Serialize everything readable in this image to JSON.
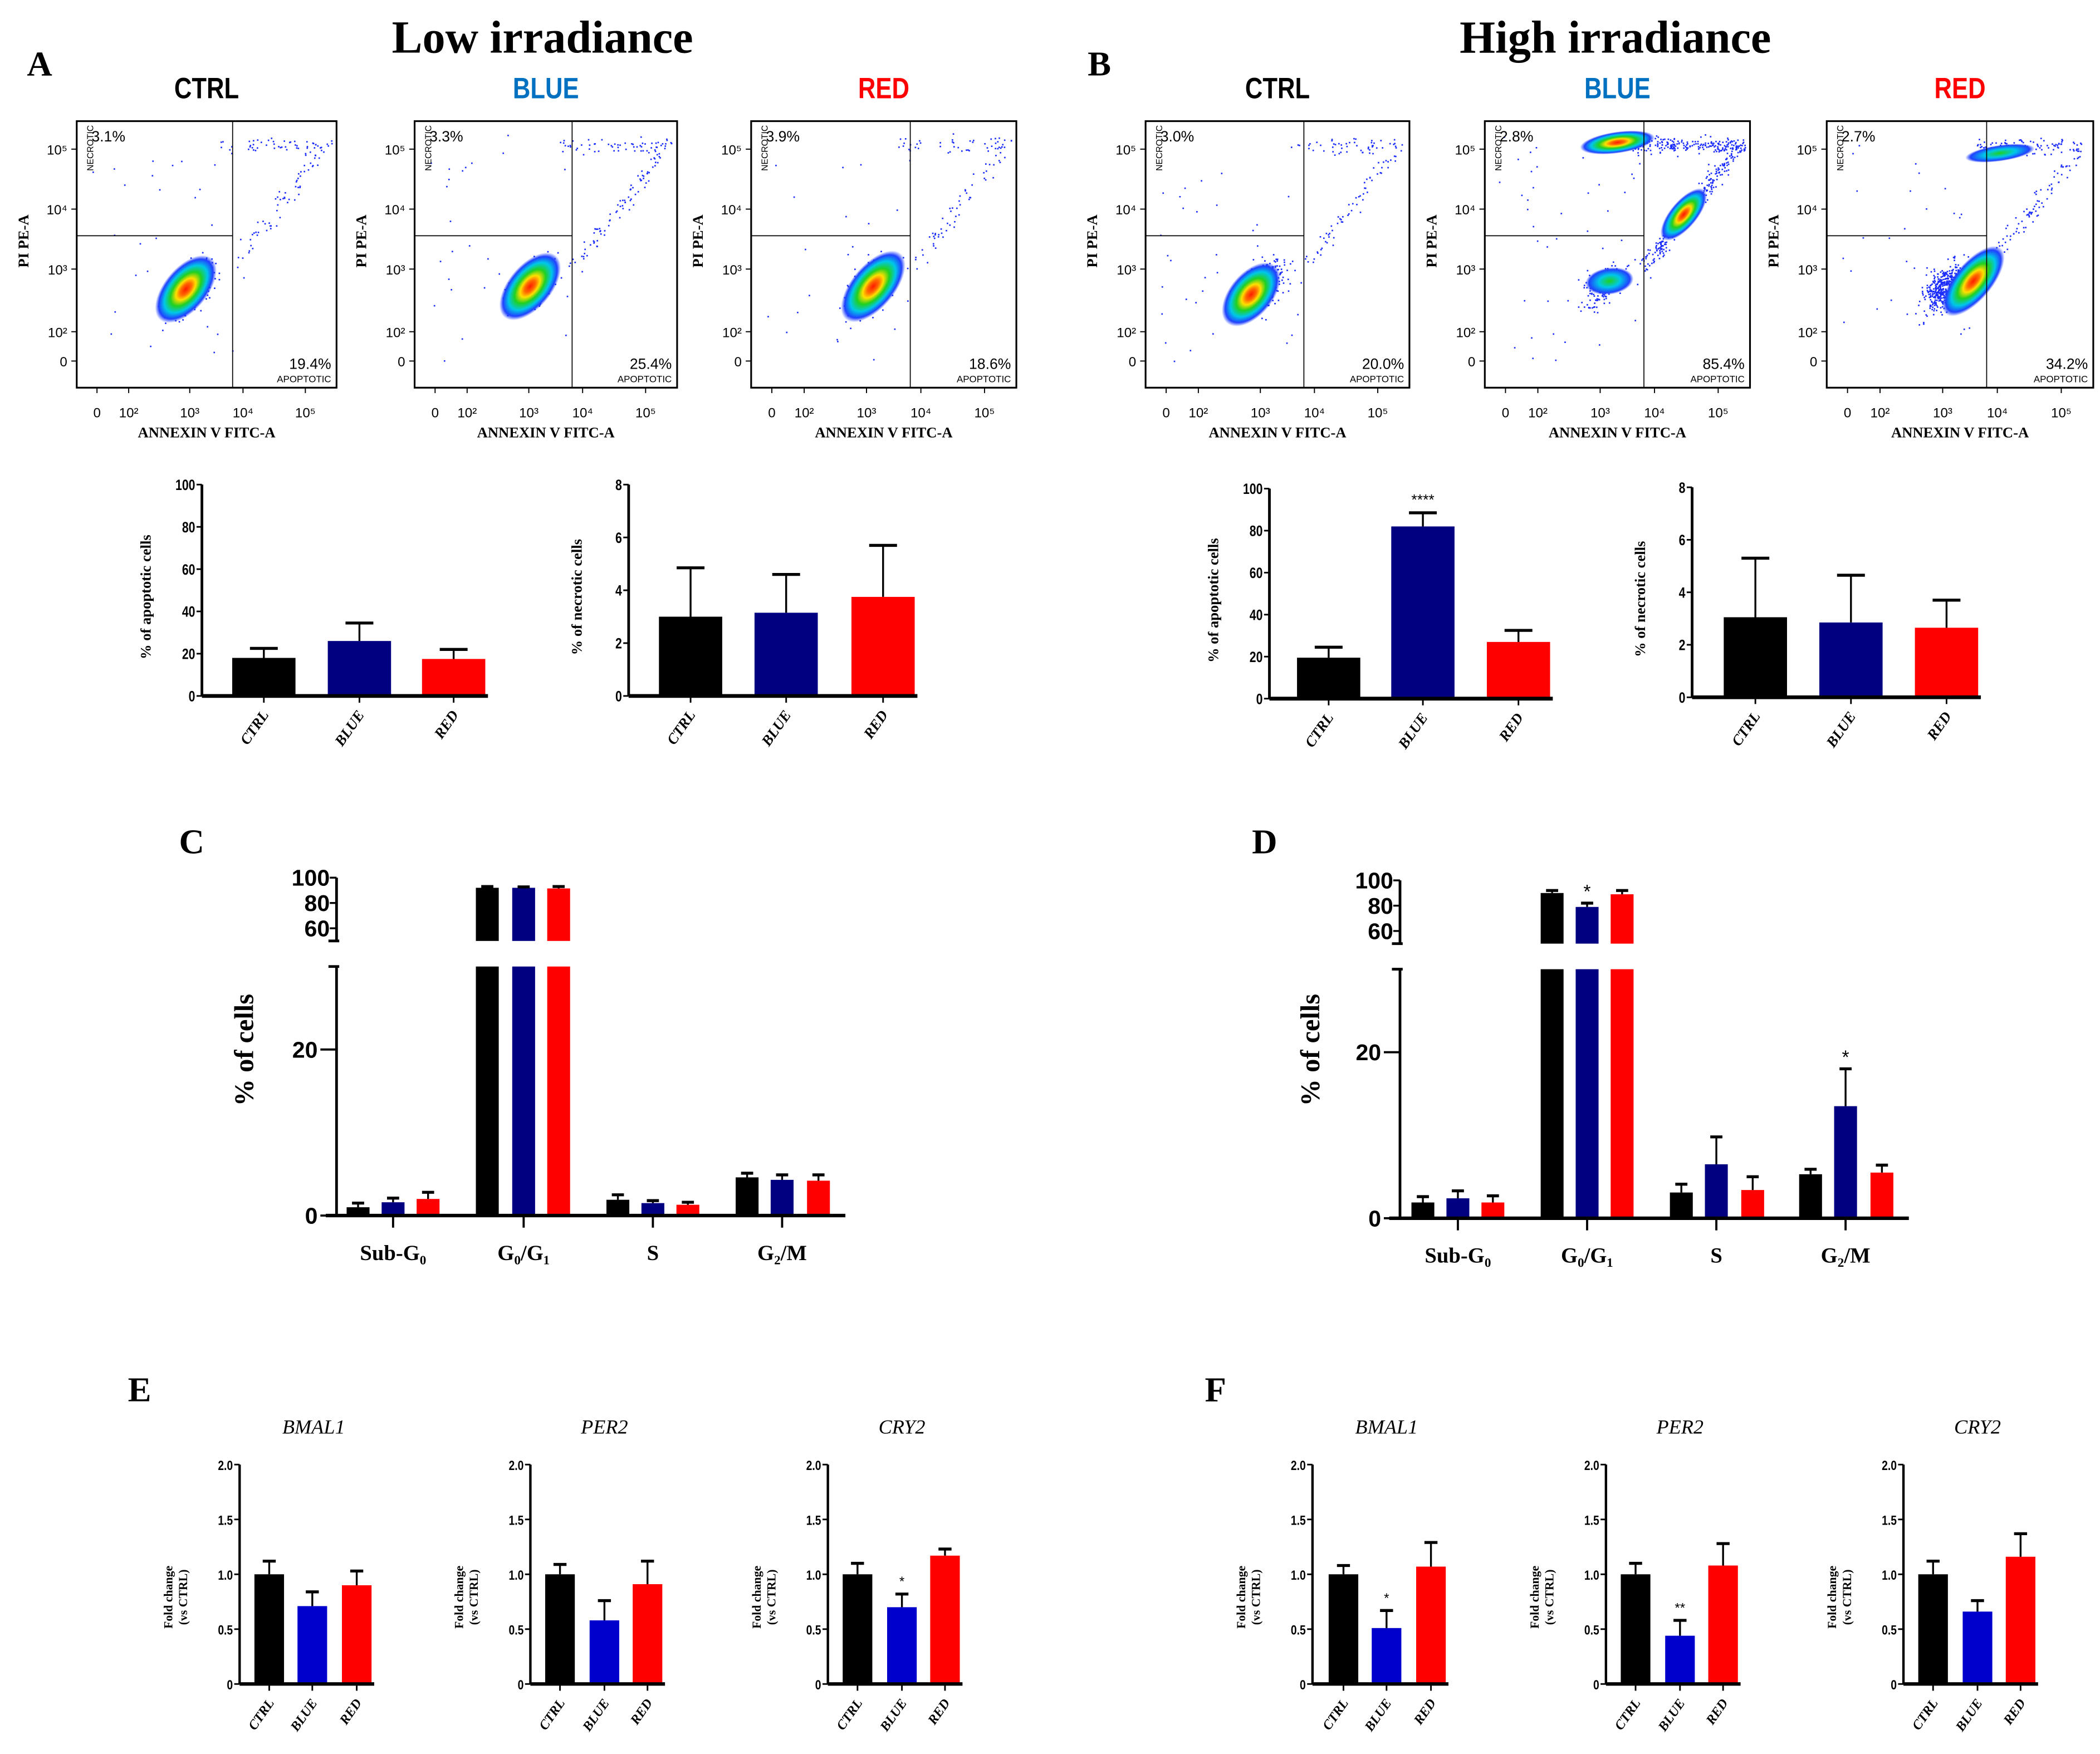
{
  "titles": {
    "low": "Low irradiance",
    "high": "High irradiance"
  },
  "panel_letters": [
    "A",
    "B",
    "C",
    "D",
    "E",
    "F"
  ],
  "colors": {
    "ctrl": "#000000",
    "blue_dark": "#000080",
    "red": "#ff0000",
    "blue_bright": "#0000cc",
    "title_blue": "#0070c0",
    "dots": "#1a2cff"
  },
  "flow": {
    "x_label": "ANNEXIN V FITC-A",
    "y_label": "PI PE-A",
    "x_ticks": [
      "0",
      "10²",
      "10³",
      "10⁴",
      "10⁵"
    ],
    "y_ticks": [
      "10⁵",
      "10⁴",
      "10³",
      "10²",
      "0"
    ],
    "necrotic_label": "NECROTIC",
    "apoptotic_label": "APOPTOTIC",
    "plots": [
      {
        "condition": "CTRL",
        "irradiance": "low",
        "necrotic": "3.1%",
        "apoptotic": "19.4%"
      },
      {
        "condition": "BLUE",
        "irradiance": "low",
        "necrotic": "3.3%",
        "apoptotic": "25.4%"
      },
      {
        "condition": "RED",
        "irradiance": "low",
        "necrotic": "3.9%",
        "apoptotic": "18.6%"
      },
      {
        "condition": "CTRL",
        "irradiance": "high",
        "necrotic": "3.0%",
        "apoptotic": "20.0%"
      },
      {
        "condition": "BLUE",
        "irradiance": "high",
        "necrotic": "2.8%",
        "apoptotic": "85.4%"
      },
      {
        "condition": "RED",
        "irradiance": "high",
        "necrotic": "2.7%",
        "apoptotic": "34.2%"
      }
    ]
  },
  "chart_data": [
    {
      "id": "A-apoptotic",
      "type": "bar",
      "categories": [
        "CTRL",
        "BLUE",
        "RED"
      ],
      "values": [
        18,
        26,
        17.5
      ],
      "errors": [
        4.5,
        8.5,
        4.5
      ],
      "significance": [
        "",
        "",
        ""
      ],
      "ylabel": "% of apoptotic cells",
      "ylim": [
        0,
        100
      ],
      "yticks": [
        "0",
        "20",
        "40",
        "60",
        "80",
        "100"
      ],
      "bar_colors": [
        "#000000",
        "#000080",
        "#ff0000"
      ]
    },
    {
      "id": "A-necrotic",
      "type": "bar",
      "categories": [
        "CTRL",
        "BLUE",
        "RED"
      ],
      "values": [
        3.0,
        3.15,
        3.75
      ],
      "errors": [
        1.85,
        1.45,
        1.95
      ],
      "significance": [
        "",
        "",
        ""
      ],
      "ylabel": "% of necrotic cells",
      "ylim": [
        0,
        8
      ],
      "yticks": [
        "0",
        "2",
        "4",
        "6",
        "8"
      ],
      "bar_colors": [
        "#000000",
        "#000080",
        "#ff0000"
      ]
    },
    {
      "id": "B-apoptotic",
      "type": "bar",
      "categories": [
        "CTRL",
        "BLUE",
        "RED"
      ],
      "values": [
        19.5,
        82,
        27
      ],
      "errors": [
        5,
        6.5,
        5.5
      ],
      "significance": [
        "",
        "****",
        ""
      ],
      "ylabel": "% of apoptotic cells",
      "ylim": [
        0,
        100
      ],
      "yticks": [
        "0",
        "20",
        "40",
        "60",
        "80",
        "100"
      ],
      "bar_colors": [
        "#000000",
        "#000080",
        "#ff0000"
      ]
    },
    {
      "id": "B-necrotic",
      "type": "bar",
      "categories": [
        "CTRL",
        "BLUE",
        "RED"
      ],
      "values": [
        3.05,
        2.85,
        2.65
      ],
      "errors": [
        2.25,
        1.8,
        1.05
      ],
      "significance": [
        "",
        "",
        ""
      ],
      "ylabel": "% of necrotic cells",
      "ylim": [
        0,
        8
      ],
      "yticks": [
        "0",
        "2",
        "4",
        "6",
        "8"
      ],
      "bar_colors": [
        "#000000",
        "#000080",
        "#ff0000"
      ]
    },
    {
      "id": "C-cell-cycle",
      "type": "bar",
      "categories": [
        "Sub-G₀",
        "G₀/G₁",
        "S",
        "G₂/M"
      ],
      "ylabel": "% of cells",
      "ylim": [
        0,
        100
      ],
      "axis_break": [
        30,
        50
      ],
      "yticks_lower": [
        "0",
        "20"
      ],
      "yticks_upper": [
        "60",
        "80",
        "100"
      ],
      "series": [
        {
          "name": "CTRL",
          "color": "#000000",
          "values": [
            1.0,
            92,
            1.9,
            4.6
          ],
          "errors": [
            0.5,
            1,
            0.6,
            0.5
          ],
          "significance": [
            "",
            "",
            "",
            ""
          ]
        },
        {
          "name": "BLUE",
          "color": "#000080",
          "values": [
            1.6,
            92,
            1.5,
            4.3
          ],
          "errors": [
            0.5,
            0.7,
            0.3,
            0.6
          ],
          "significance": [
            "",
            "",
            "",
            ""
          ]
        },
        {
          "name": "RED",
          "color": "#ff0000",
          "values": [
            2.0,
            91.5,
            1.3,
            4.2
          ],
          "errors": [
            0.8,
            1.5,
            0.3,
            0.7
          ],
          "significance": [
            "",
            "",
            "",
            ""
          ]
        }
      ]
    },
    {
      "id": "D-cell-cycle",
      "type": "bar",
      "categories": [
        "Sub-G₀",
        "G₀/G₁",
        "S",
        "G₂/M"
      ],
      "ylabel": "% of cells",
      "ylim": [
        0,
        100
      ],
      "axis_break": [
        30,
        50
      ],
      "yticks_lower": [
        "0",
        "20"
      ],
      "yticks_upper": [
        "60",
        "80",
        "100"
      ],
      "series": [
        {
          "name": "CTRL",
          "color": "#000000",
          "values": [
            1.9,
            90,
            3.1,
            5.3
          ],
          "errors": [
            0.7,
            2,
            1,
            0.6
          ],
          "significance": [
            "",
            "",
            "",
            ""
          ]
        },
        {
          "name": "BLUE",
          "color": "#000080",
          "values": [
            2.4,
            79,
            6.5,
            13.5
          ],
          "errors": [
            0.9,
            3,
            3.3,
            4.5
          ],
          "significance": [
            "",
            "*",
            "",
            "*"
          ]
        },
        {
          "name": "RED",
          "color": "#ff0000",
          "values": [
            1.9,
            89,
            3.4,
            5.5
          ],
          "errors": [
            0.8,
            3,
            1.6,
            0.9
          ],
          "significance": [
            "",
            "",
            "",
            ""
          ]
        }
      ]
    },
    {
      "id": "E-BMAL1",
      "type": "bar",
      "title": "BMAL1",
      "categories": [
        "CTRL",
        "BLUE",
        "RED"
      ],
      "values": [
        1.0,
        0.71,
        0.9
      ],
      "errors": [
        0.12,
        0.13,
        0.13
      ],
      "significance": [
        "",
        "",
        ""
      ],
      "ylabel": "Fold change",
      "ylabel2": "(vs CTRL)",
      "ylim": [
        0,
        2
      ],
      "yticks": [
        "0",
        "0.5",
        "1.0",
        "1.5",
        "2.0"
      ],
      "bar_colors": [
        "#000000",
        "#0000cc",
        "#ff0000"
      ]
    },
    {
      "id": "E-PER2",
      "type": "bar",
      "title": "PER2",
      "categories": [
        "CTRL",
        "BLUE",
        "RED"
      ],
      "values": [
        1.0,
        0.58,
        0.91
      ],
      "errors": [
        0.09,
        0.18,
        0.21
      ],
      "significance": [
        "",
        "",
        ""
      ],
      "ylabel": "Fold change",
      "ylabel2": "(vs CTRL)",
      "ylim": [
        0,
        2
      ],
      "yticks": [
        "0",
        "0.5",
        "1.0",
        "1.5",
        "2.0"
      ],
      "bar_colors": [
        "#000000",
        "#0000cc",
        "#ff0000"
      ]
    },
    {
      "id": "E-CRY2",
      "type": "bar",
      "title": "CRY2",
      "categories": [
        "CTRL",
        "BLUE",
        "RED"
      ],
      "values": [
        1.0,
        0.7,
        1.17
      ],
      "errors": [
        0.1,
        0.12,
        0.06
      ],
      "significance": [
        "",
        "*",
        ""
      ],
      "ylabel": "Fold change",
      "ylabel2": "(vs CTRL)",
      "ylim": [
        0,
        2
      ],
      "yticks": [
        "0",
        "0.5",
        "1.0",
        "1.5",
        "2.0"
      ],
      "bar_colors": [
        "#000000",
        "#0000cc",
        "#ff0000"
      ]
    },
    {
      "id": "F-BMAL1",
      "type": "bar",
      "title": "BMAL1",
      "categories": [
        "CTRL",
        "BLUE",
        "RED"
      ],
      "values": [
        1.0,
        0.51,
        1.07
      ],
      "errors": [
        0.08,
        0.16,
        0.22
      ],
      "significance": [
        "",
        "*",
        ""
      ],
      "ylabel": "Fold change",
      "ylabel2": "(vs CTRL)",
      "ylim": [
        0,
        2
      ],
      "yticks": [
        "0",
        "0.5",
        "1.0",
        "1.5",
        "2.0"
      ],
      "bar_colors": [
        "#000000",
        "#0000cc",
        "#ff0000"
      ]
    },
    {
      "id": "F-PER2",
      "type": "bar",
      "title": "PER2",
      "categories": [
        "CTRL",
        "BLUE",
        "RED"
      ],
      "values": [
        1.0,
        0.44,
        1.08
      ],
      "errors": [
        0.1,
        0.14,
        0.2
      ],
      "significance": [
        "",
        "**",
        ""
      ],
      "ylabel": "Fold change",
      "ylabel2": "(vs CTRL)",
      "ylim": [
        0,
        2
      ],
      "yticks": [
        "0",
        "0.5",
        "1.0",
        "1.5",
        "2.0"
      ],
      "bar_colors": [
        "#000000",
        "#0000cc",
        "#ff0000"
      ]
    },
    {
      "id": "F-CRY2",
      "type": "bar",
      "title": "CRY2",
      "categories": [
        "CTRL",
        "BLUE",
        "RED"
      ],
      "values": [
        1.0,
        0.66,
        1.16
      ],
      "errors": [
        0.12,
        0.1,
        0.21
      ],
      "significance": [
        "",
        "",
        ""
      ],
      "ylabel": "Fold change",
      "ylabel2": "(vs CTRL)",
      "ylim": [
        0,
        2
      ],
      "yticks": [
        "0",
        "0.5",
        "1.0",
        "1.5",
        "2.0"
      ],
      "bar_colors": [
        "#000000",
        "#0000cc",
        "#ff0000"
      ]
    }
  ]
}
